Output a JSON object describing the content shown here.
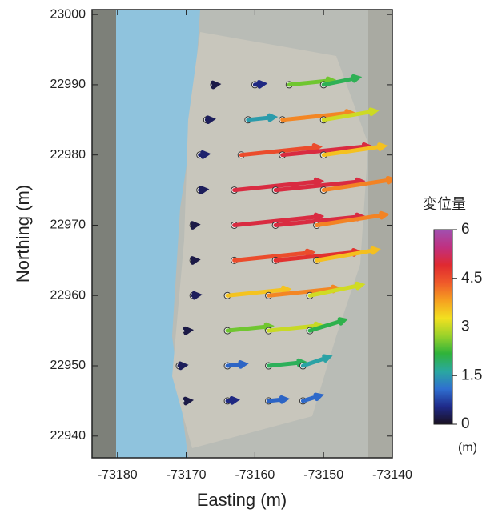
{
  "chart_data": {
    "type": "quiver",
    "x_label": "Easting (m)",
    "y_label": "Northing (m)",
    "xlim": [
      -73183.7,
      -73140
    ],
    "ylim": [
      22936.9,
      23000.7
    ],
    "xticks": [
      -73180,
      -73170,
      -73160,
      -73150,
      -73140
    ],
    "yticks": [
      22940,
      22950,
      22960,
      22970,
      22980,
      22990,
      23000
    ],
    "arrow_scale": 2.5,
    "x": [
      -73166,
      -73160,
      -73155,
      -73150,
      -73167,
      -73161,
      -73156,
      -73150,
      -73168,
      -73162,
      -73156,
      -73150,
      -73168,
      -73163,
      -73157,
      -73150,
      -73169,
      -73163,
      -73157,
      -73151,
      -73169,
      -73163,
      -73157,
      -73151,
      -73169,
      -73164,
      -73158,
      -73152,
      -73170,
      -73164,
      -73158,
      -73152,
      -73171,
      -73164,
      -73158,
      -73153,
      -73170,
      -73164,
      -73158,
      -73153
    ],
    "y": [
      22990,
      22990,
      22990,
      22990,
      22985,
      22985,
      22985,
      22985,
      22980,
      22980,
      22980,
      22980,
      22975,
      22975,
      22975,
      22975,
      22970,
      22970,
      22970,
      22970,
      22965,
      22965,
      22965,
      22965,
      22960,
      22960,
      22960,
      22960,
      22955,
      22955,
      22955,
      22955,
      22950,
      22950,
      22950,
      22950,
      22945,
      22945,
      22945,
      22945
    ],
    "u": [
      0.2,
      0.5,
      2.5,
      2.0,
      0.3,
      1.5,
      4.0,
      3.0,
      0.4,
      4.5,
      5.0,
      3.5,
      0.3,
      5.0,
      5.0,
      4.0,
      0.2,
      5.0,
      5.0,
      4.0,
      0.2,
      4.5,
      4.8,
      3.5,
      0.3,
      3.5,
      4.0,
      3.0,
      0.2,
      2.5,
      3.0,
      2.0,
      0.3,
      1.0,
      2.0,
      1.5,
      0.2,
      0.5,
      1.0,
      1.0
    ],
    "v": [
      0.02,
      0.05,
      0.25,
      0.4,
      0.03,
      0.15,
      0.4,
      0.5,
      0.04,
      0.45,
      0.5,
      0.5,
      0.03,
      0.5,
      0.5,
      0.6,
      0.02,
      0.5,
      0.5,
      0.6,
      0.02,
      0.45,
      0.48,
      0.6,
      0.03,
      0.35,
      0.4,
      0.6,
      0.02,
      0.25,
      0.3,
      0.6,
      0.03,
      0.1,
      0.2,
      0.5,
      0.02,
      0.05,
      0.1,
      0.3
    ],
    "colorbar": {
      "label": "変位量",
      "unit": "(m)",
      "clim": [
        0,
        6
      ],
      "ticks": [
        0,
        1.5,
        3,
        4.5,
        6
      ],
      "colormap": [
        "#1a1020",
        "#1f2a8a",
        "#2f6fd0",
        "#2aa8a0",
        "#2fb33a",
        "#9ad22a",
        "#f2e020",
        "#f6a020",
        "#ef5a2a",
        "#e02a30",
        "#c03080",
        "#a050b0"
      ]
    }
  }
}
